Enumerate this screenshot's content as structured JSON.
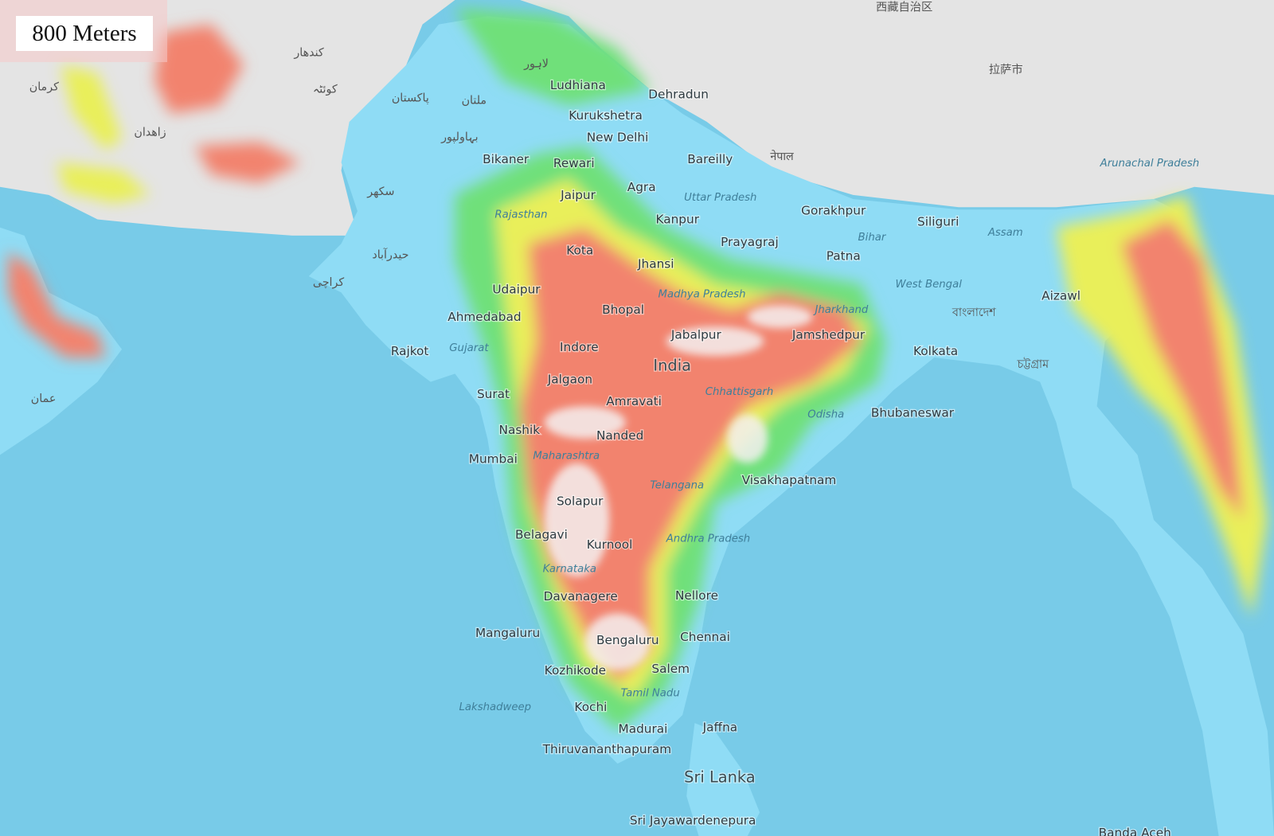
{
  "scale": {
    "label": "800 Meters"
  },
  "colors": {
    "sea": "#78cbe8",
    "lowland": "#8fdcf5",
    "low": "#6fe07a",
    "mid": "#e9ef5a",
    "high": "#f2836e",
    "peak": "#f4f0f0",
    "relief": "#e6e6e6"
  },
  "cities": [
    "Ludhiana",
    "Dehradun",
    "Kurukshetra",
    "New Delhi",
    "Bikaner",
    "Rewari",
    "Bareilly",
    "Jaipur",
    "Agra",
    "Kanpur",
    "Gorakhpur",
    "Siliguri",
    "Prayagraj",
    "Patna",
    "Kota",
    "Jhansi",
    "Udaipur",
    "Bhopal",
    "Ahmedabad",
    "Jabalpur",
    "Jamshedpur",
    "Rajkot",
    "Indore",
    "Kolkata",
    "Jalgaon",
    "Surat",
    "Amravati",
    "Bhubaneswar",
    "Nashik",
    "Nanded",
    "Mumbai",
    "Visakhapatnam",
    "Solapur",
    "Belagavi",
    "Kurnool",
    "Davanagere",
    "Nellore",
    "Mangaluru",
    "Bengaluru",
    "Chennai",
    "Kozhikode",
    "Salem",
    "Kochi",
    "Madurai",
    "Jaffna",
    "Thiruvananthapuram",
    "Sri Jayawardenepura",
    "Aizawl",
    "Banda Aceh"
  ],
  "states": [
    "Uttar Pradesh",
    "Rajasthan",
    "Bihar",
    "Madhya Pradesh",
    "West Bengal",
    "Jharkhand",
    "Gujarat",
    "Chhattisgarh",
    "Odisha",
    "Maharashtra",
    "Telangana",
    "Andhra Pradesh",
    "Karnataka",
    "Tamil Nadu",
    "Lakshadweep",
    "Assam",
    "Arunachal Pradesh"
  ],
  "countries": [
    "India",
    "Sri Lanka"
  ],
  "foreign_labels": [
    "پاکستان",
    "کراچی",
    "ملتان",
    "لاہور",
    "بہاولپور",
    "سکھر",
    "حیدرآباد",
    "नेपाल",
    "বাংলাদেশ",
    "চট্টগ্রাম",
    "拉萨市",
    "西藏自治区",
    "عمان",
    "زاهدان",
    "کرمان",
    "کوئٹہ",
    "کندهار"
  ]
}
